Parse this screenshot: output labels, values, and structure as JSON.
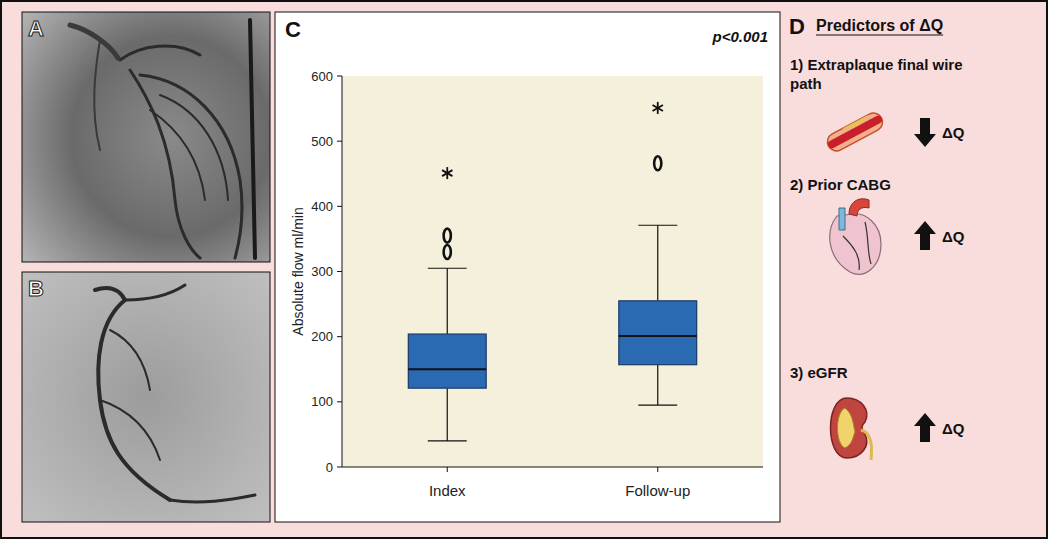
{
  "chart_data": {
    "type": "box",
    "y_label": "Absolute flow ml/min",
    "categories": [
      "Index",
      "Follow-up"
    ],
    "boxes": [
      {
        "min": 40,
        "q1": 121,
        "median": 150,
        "q3": 204,
        "max": 305,
        "outliers": [
          330,
          355
        ],
        "extremes": [
          451
        ]
      },
      {
        "min": 95,
        "q1": 157,
        "median": 201,
        "q3": 255,
        "max": 371,
        "outliers": [
          466
        ],
        "extremes": [
          551
        ]
      }
    ],
    "color": "#2a6ab3",
    "ylim": [
      0,
      600
    ],
    "yticks": [
      0,
      100,
      200,
      300,
      400,
      500,
      600
    ],
    "annotation": "p<0.001"
  },
  "panel_letters": [
    "A",
    "B",
    "C",
    "D"
  ],
  "predictors": {
    "title": "Predictors of ΔQ",
    "items": [
      {
        "label": "1) Extraplaque final wire path",
        "effect": "ΔQ",
        "direction": "down"
      },
      {
        "label": "2) Prior CABG",
        "effect": "ΔQ",
        "direction": "up"
      },
      {
        "label": "3) eGFR",
        "effect": "ΔQ",
        "direction": "up"
      }
    ]
  }
}
